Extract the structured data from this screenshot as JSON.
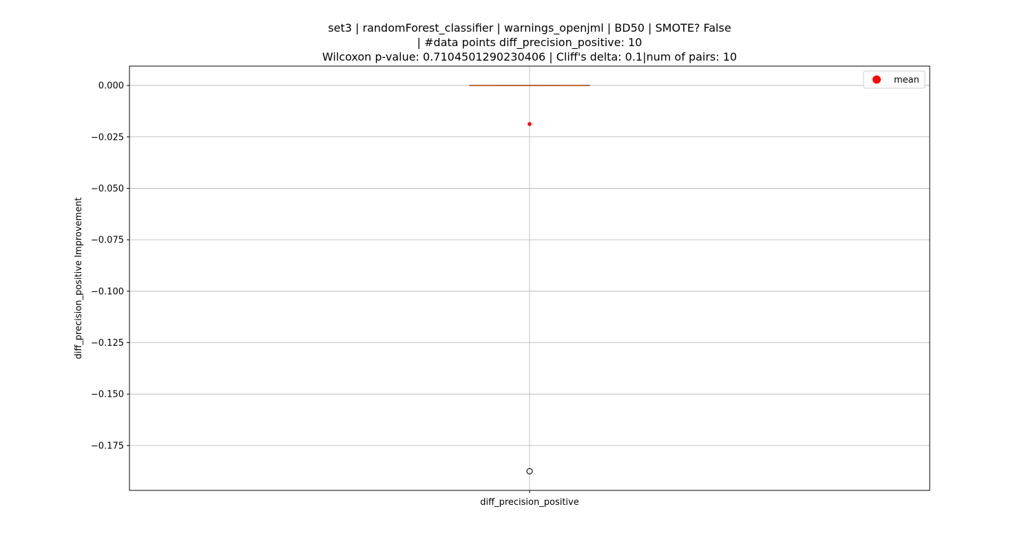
{
  "chart_data": {
    "type": "box",
    "title_lines": [
      "set3 | randomForest_classifier | warnings_openjml | BD50 | SMOTE? False",
      "| #data points diff_precision_positive: 10",
      "Wilcoxon p-value: 0.7104501290230406 | Cliff's delta: 0.1|num of pairs: 10"
    ],
    "xlabel": "",
    "ylabel": "diff_precision_positive Improvement",
    "categories": [
      "diff_precision_positive"
    ],
    "ylim": [
      -0.1968,
      0.0094
    ],
    "yticks": [
      0.0,
      -0.025,
      -0.05,
      -0.075,
      -0.1,
      -0.125,
      -0.15,
      -0.175
    ],
    "ytick_labels": [
      "0.000",
      "−0.025",
      "−0.050",
      "−0.075",
      "−0.100",
      "−0.125",
      "−0.150",
      "−0.175"
    ],
    "grid": true,
    "legend": {
      "placement": "top-right",
      "entries": [
        {
          "label": "mean",
          "color": "#ff0000",
          "marker": "circle"
        }
      ]
    },
    "box": {
      "q1": 0.0,
      "median": 0.0,
      "q3": 0.0,
      "whisker_low": 0.0,
      "whisker_high": 0.0,
      "mean": -0.01875,
      "outliers": [
        -0.1875
      ]
    },
    "colors": {
      "box": "#1f3b8f",
      "median": "#ff7f0e",
      "mean": "#ff0000",
      "grid": "#b0b0b0",
      "outlier": "#000000"
    }
  }
}
